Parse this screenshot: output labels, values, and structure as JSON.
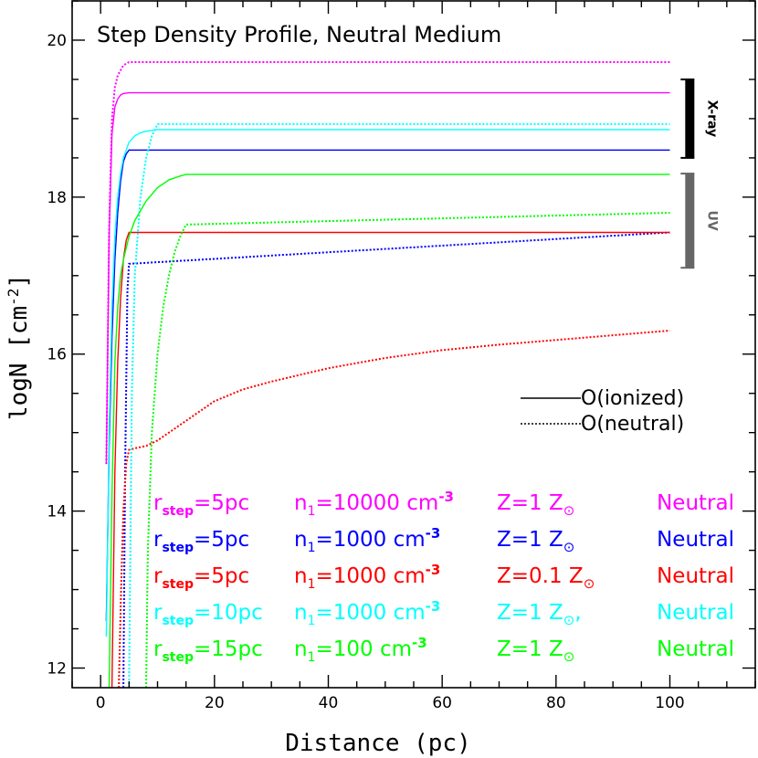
{
  "chart_data": {
    "type": "line",
    "title": "Step Density Profile, Neutral Medium",
    "xlabel": "Distance (pc)",
    "ylabel": "logN [cm",
    "ylabel_sup": "-2",
    "ylabel_end": "]",
    "xlim": [
      -5,
      115
    ],
    "ylim": [
      11.75,
      20.5
    ],
    "xticks": [
      0,
      20,
      40,
      60,
      80,
      100
    ],
    "xtick_labels": [
      "0",
      "20",
      "40",
      "60",
      "80",
      "100"
    ],
    "yticks": [
      12,
      14,
      16,
      18,
      20
    ],
    "ytick_labels": [
      "12",
      "14",
      "16",
      "18",
      "20"
    ],
    "series": [
      {
        "name": "O(ionized) rstep=5pc n1=10000 Z=1",
        "color": "#ff00ff",
        "style": "solid",
        "x": [
          1,
          1.5,
          2,
          2.5,
          3,
          3.5,
          4,
          5,
          100
        ],
        "y": [
          14.6,
          17.5,
          18.8,
          19.15,
          19.25,
          19.3,
          19.32,
          19.33,
          19.33
        ]
      },
      {
        "name": "O(neutral) rstep=5pc n1=10000 Z=1",
        "color": "#ff00ff",
        "style": "dotted",
        "x": [
          1,
          1.5,
          2,
          2.5,
          3,
          4,
          5,
          100
        ],
        "y": [
          14.6,
          17.6,
          19.0,
          19.4,
          19.55,
          19.68,
          19.72,
          19.72
        ]
      },
      {
        "name": "O(ionized) rstep=5pc n1=1000 Z=1",
        "color": "#0000ff",
        "style": "solid",
        "x": [
          1,
          1.5,
          2,
          2.5,
          3,
          3.5,
          4,
          4.5,
          5,
          100
        ],
        "y": [
          12.6,
          14.8,
          16.2,
          17.2,
          17.8,
          18.2,
          18.45,
          18.55,
          18.6,
          18.6
        ]
      },
      {
        "name": "O(neutral) rstep=5pc n1=1000 Z=1",
        "color": "#0000ff",
        "style": "dotted",
        "x": [
          4,
          4.3,
          4.7,
          5,
          100
        ],
        "y": [
          11.75,
          14.5,
          16.8,
          17.15,
          17.55
        ]
      },
      {
        "name": "O(ionized) rstep=5pc n1=1000 Z=0.1",
        "color": "#ff0000",
        "style": "solid",
        "x": [
          2,
          2.5,
          3,
          3.5,
          4,
          4.5,
          5,
          100
        ],
        "y": [
          11.75,
          14.5,
          15.9,
          16.7,
          17.2,
          17.45,
          17.55,
          17.55
        ]
      },
      {
        "name": "O(neutral) rstep=5pc n1=1000 Z=0.1",
        "color": "#ff0000",
        "style": "dotted",
        "x": [
          3.2,
          3.6,
          4,
          4.5,
          5,
          6,
          8,
          10,
          15,
          20,
          25,
          30,
          40,
          50,
          60,
          70,
          80,
          90,
          100
        ],
        "y": [
          11.75,
          13.0,
          14.0,
          14.6,
          14.78,
          14.8,
          14.83,
          14.9,
          15.15,
          15.4,
          15.55,
          15.65,
          15.82,
          15.95,
          16.05,
          16.12,
          16.18,
          16.24,
          16.3
        ]
      },
      {
        "name": "O(ionized) rstep=10pc n1=1000 Z=1",
        "color": "#00ffff",
        "style": "solid",
        "x": [
          1,
          1.5,
          2,
          2.5,
          3,
          3.5,
          4,
          5,
          6,
          7,
          8,
          10,
          100
        ],
        "y": [
          12.4,
          15.0,
          16.6,
          17.5,
          18.0,
          18.3,
          18.5,
          18.7,
          18.78,
          18.82,
          18.84,
          18.86,
          18.86
        ]
      },
      {
        "name": "O(neutral) rstep=10pc n1=1000 Z=1",
        "color": "#00ffff",
        "style": "dotted",
        "x": [
          5,
          5.5,
          6,
          7,
          8,
          9,
          10,
          100
        ],
        "y": [
          11.75,
          15.5,
          17.0,
          18.0,
          18.5,
          18.78,
          18.93,
          18.93
        ]
      },
      {
        "name": "O(ionized) rstep=15pc n1=100 Z=1",
        "color": "#00ff00",
        "style": "solid",
        "x": [
          1.5,
          2,
          2.5,
          3,
          3.5,
          4,
          5,
          6,
          8,
          10,
          12,
          14,
          15,
          100
        ],
        "y": [
          11.75,
          14.2,
          15.9,
          16.6,
          17.0,
          17.2,
          17.5,
          17.7,
          17.95,
          18.12,
          18.22,
          18.27,
          18.29,
          18.29
        ]
      },
      {
        "name": "O(neutral) rstep=15pc n1=100 Z=1",
        "color": "#00ff00",
        "style": "dotted",
        "x": [
          8,
          8.3,
          9,
          10,
          11,
          12,
          13,
          14,
          15,
          100
        ],
        "y": [
          11.75,
          13.5,
          15.0,
          16.0,
          16.6,
          17.0,
          17.3,
          17.5,
          17.65,
          17.8
        ]
      }
    ],
    "bands": [
      {
        "label": "X-ray",
        "x_at": 103.5,
        "ymin": 18.5,
        "ymax": 19.5,
        "color": "#000000",
        "text_color": "#000000"
      },
      {
        "label": "UV",
        "x_at": 103.5,
        "ymin": 17.1,
        "ymax": 18.3,
        "color": "#666666",
        "text_color": "#666666"
      }
    ],
    "line_key": [
      {
        "label": "O(ionized)",
        "style": "solid"
      },
      {
        "label": "O(neutral)",
        "style": "dotted"
      }
    ],
    "annotations": [
      {
        "color": "#ff00ff",
        "rstep": "5pc",
        "n1": "10000",
        "n1_unit": "cm",
        "n1_exp": "-3",
        "Z": "Z=1",
        "medium": "Neutral"
      },
      {
        "color": "#0000ff",
        "rstep": "5pc",
        "n1": "1000",
        "n1_unit": "cm",
        "n1_exp": "-3",
        "Z": "Z=1",
        "medium": "Neutral"
      },
      {
        "color": "#ff0000",
        "rstep": "5pc",
        "n1": "1000",
        "n1_unit": "cm",
        "n1_exp": "-3",
        "Z": "Z=0.1",
        "medium": "Neutral"
      },
      {
        "color": "#00ffff",
        "rstep": "10pc",
        "n1": "1000",
        "n1_unit": "cm",
        "n1_exp": "-3",
        "Z": "Z=1",
        "medium": "Neutral",
        "z_suffix": ","
      },
      {
        "color": "#00ff00",
        "rstep": "15pc",
        "n1": "100",
        "n1_unit": "cm",
        "n1_exp": "-3",
        "Z": "Z=1",
        "medium": "Neutral"
      }
    ],
    "ann_labels": {
      "r": "r",
      "r_sub": "step",
      "n": "n",
      "n_sub": "1",
      "z_sym": "Z",
      "sun": "⊙"
    }
  }
}
